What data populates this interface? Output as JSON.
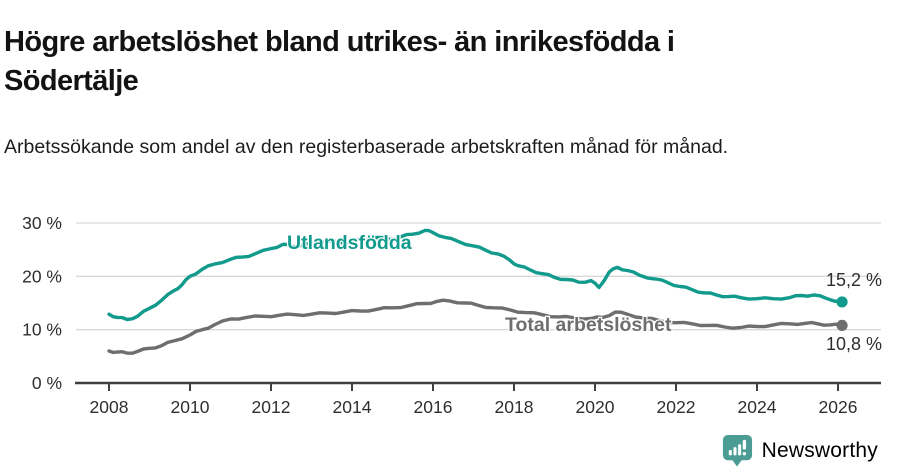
{
  "chart_data": {
    "type": "line",
    "title": "Högre arbetslöshet bland utrikes- än inrikesfödda i Södertälje",
    "subtitle": "Arbetssökande som andel av den registerbaserade arbetskraften månad för månad.",
    "unit": "%",
    "grid": "horizontal",
    "legend_position": "inline-labels",
    "x_axis": {
      "ticks": [
        2008,
        2010,
        2012,
        2014,
        2016,
        2018,
        2020,
        2022,
        2024,
        2026
      ],
      "tick_labels": [
        "2008",
        "2010",
        "2012",
        "2014",
        "2016",
        "2018",
        "2020",
        "2022",
        "2024",
        "2026"
      ],
      "range": [
        2007.2,
        2027.1
      ]
    },
    "y_axis": {
      "ticks": [
        0,
        10,
        20,
        30
      ],
      "tick_labels": [
        "0 %",
        "10 %",
        "20 %",
        "30 %"
      ],
      "range": [
        0,
        33
      ]
    },
    "series": [
      {
        "name": "Utlandsfödda",
        "color": "#129a8d",
        "end_label": "15,2 %",
        "end_value": 15.2,
        "points": [
          [
            2008.0,
            12.9
          ],
          [
            2008.2,
            12.3
          ],
          [
            2008.45,
            11.9
          ],
          [
            2008.7,
            12.5
          ],
          [
            2009.0,
            14.0
          ],
          [
            2009.3,
            15.5
          ],
          [
            2009.6,
            17.3
          ],
          [
            2009.8,
            18.4
          ],
          [
            2010.0,
            20.0
          ],
          [
            2010.3,
            21.3
          ],
          [
            2010.6,
            22.3
          ],
          [
            2011.0,
            23.2
          ],
          [
            2011.3,
            23.6
          ],
          [
            2011.6,
            24.2
          ],
          [
            2012.0,
            25.2
          ],
          [
            2012.3,
            26.0
          ],
          [
            2012.5,
            25.6
          ],
          [
            2012.8,
            25.9
          ],
          [
            2013.1,
            26.3
          ],
          [
            2013.4,
            26.6
          ],
          [
            2013.7,
            26.3
          ],
          [
            2014.0,
            26.6
          ],
          [
            2014.3,
            26.9
          ],
          [
            2014.6,
            27.3
          ],
          [
            2014.9,
            26.9
          ],
          [
            2015.2,
            27.4
          ],
          [
            2015.5,
            27.9
          ],
          [
            2015.8,
            28.6
          ],
          [
            2016.0,
            28.2
          ],
          [
            2016.3,
            27.3
          ],
          [
            2016.6,
            26.6
          ],
          [
            2017.0,
            25.7
          ],
          [
            2017.3,
            24.9
          ],
          [
            2017.6,
            24.2
          ],
          [
            2017.9,
            23.0
          ],
          [
            2018.1,
            22.0
          ],
          [
            2018.4,
            21.2
          ],
          [
            2018.7,
            20.5
          ],
          [
            2019.0,
            19.8
          ],
          [
            2019.3,
            19.4
          ],
          [
            2019.6,
            18.9
          ],
          [
            2019.9,
            19.2
          ],
          [
            2020.1,
            17.9
          ],
          [
            2020.35,
            20.8
          ],
          [
            2020.55,
            21.7
          ],
          [
            2020.8,
            21.1
          ],
          [
            2021.1,
            20.2
          ],
          [
            2021.5,
            19.5
          ],
          [
            2021.8,
            18.8
          ],
          [
            2022.1,
            18.1
          ],
          [
            2022.4,
            17.5
          ],
          [
            2022.7,
            16.9
          ],
          [
            2023.0,
            16.5
          ],
          [
            2023.3,
            16.2
          ],
          [
            2023.6,
            16.0
          ],
          [
            2024.0,
            15.8
          ],
          [
            2024.4,
            15.8
          ],
          [
            2024.8,
            16.0
          ],
          [
            2025.1,
            16.4
          ],
          [
            2025.4,
            16.5
          ],
          [
            2025.7,
            15.9
          ],
          [
            2026.1,
            15.2
          ]
        ]
      },
      {
        "name": "Total arbetslöshet",
        "color": "#6e6e6e",
        "end_label": "10,8 %",
        "end_value": 10.8,
        "points": [
          [
            2008.0,
            6.0
          ],
          [
            2008.2,
            5.8
          ],
          [
            2008.45,
            5.6
          ],
          [
            2008.7,
            5.9
          ],
          [
            2009.0,
            6.5
          ],
          [
            2009.3,
            7.0
          ],
          [
            2009.6,
            7.9
          ],
          [
            2010.0,
            9.0
          ],
          [
            2010.3,
            10.0
          ],
          [
            2010.6,
            10.9
          ],
          [
            2011.0,
            12.0
          ],
          [
            2011.4,
            12.3
          ],
          [
            2011.8,
            12.5
          ],
          [
            2012.2,
            12.7
          ],
          [
            2012.6,
            12.8
          ],
          [
            2013.0,
            12.9
          ],
          [
            2013.4,
            13.1
          ],
          [
            2013.8,
            13.3
          ],
          [
            2014.2,
            13.5
          ],
          [
            2014.6,
            13.8
          ],
          [
            2015.0,
            14.1
          ],
          [
            2015.4,
            14.5
          ],
          [
            2015.8,
            14.9
          ],
          [
            2016.1,
            15.3
          ],
          [
            2016.4,
            15.4
          ],
          [
            2016.8,
            15.0
          ],
          [
            2017.1,
            14.6
          ],
          [
            2017.5,
            14.1
          ],
          [
            2017.9,
            13.7
          ],
          [
            2018.3,
            13.2
          ],
          [
            2018.7,
            12.8
          ],
          [
            2019.1,
            12.4
          ],
          [
            2019.5,
            12.2
          ],
          [
            2019.9,
            12.1
          ],
          [
            2020.2,
            12.3
          ],
          [
            2020.5,
            13.3
          ],
          [
            2020.8,
            12.9
          ],
          [
            2021.2,
            12.2
          ],
          [
            2021.6,
            11.7
          ],
          [
            2022.0,
            11.3
          ],
          [
            2022.4,
            11.1
          ],
          [
            2022.8,
            10.8
          ],
          [
            2023.2,
            10.5
          ],
          [
            2023.6,
            10.4
          ],
          [
            2024.0,
            10.6
          ],
          [
            2024.4,
            10.9
          ],
          [
            2024.8,
            11.1
          ],
          [
            2025.2,
            11.2
          ],
          [
            2025.5,
            11.1
          ],
          [
            2025.8,
            10.9
          ],
          [
            2026.1,
            10.8
          ]
        ]
      }
    ]
  },
  "footer": {
    "brand": "Newsworthy",
    "brand_color": "#4a9c95",
    "logo_icon": "bar-chart-speech-bubble-icon"
  },
  "style": {
    "grid_color": "#d9d9d9",
    "axis_color": "#3f3f3f",
    "background": "#ffffff"
  }
}
